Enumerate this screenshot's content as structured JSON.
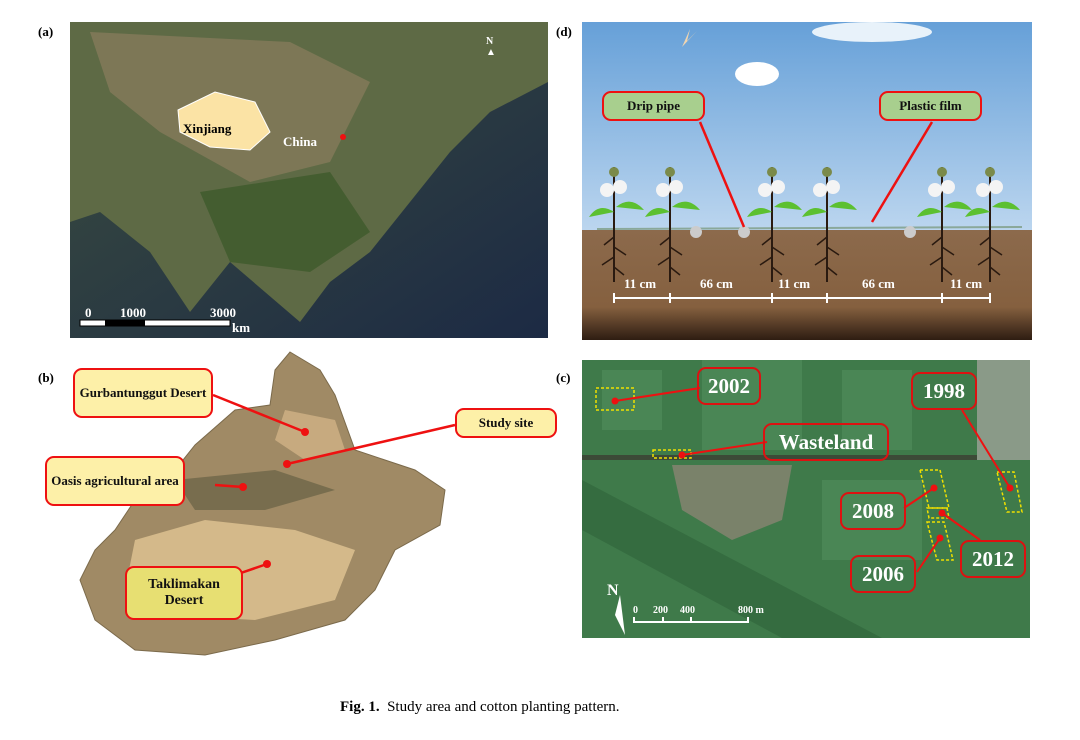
{
  "panels": {
    "a": {
      "label": "(a)",
      "north": "N",
      "region_label": "Xinjiang",
      "country_label": "China",
      "scale_ticks": [
        "0",
        "1000",
        "3000"
      ],
      "scale_unit": "km"
    },
    "b": {
      "label": "(b)",
      "callouts": [
        "Gurbantunggut Desert",
        "Study site",
        "Oasis agricultural area",
        "Taklimakan Desert"
      ]
    },
    "d": {
      "label": "(d)",
      "callouts": [
        "Drip pipe",
        "Plastic film"
      ],
      "spacings": [
        "11 cm",
        "66 cm",
        "11 cm",
        "66 cm",
        "11 cm"
      ]
    },
    "c": {
      "label": "(c)",
      "callouts": [
        "2002",
        "1998",
        "Wasteland",
        "2008",
        "2012",
        "2006"
      ],
      "north": "N",
      "scale_ticks": [
        "0",
        "200",
        "400",
        "800 m"
      ]
    }
  },
  "caption": {
    "prefix": "Fig. 1.",
    "text": "Study area and cotton planting pattern."
  },
  "colors": {
    "callout_border": "#e11111",
    "marker": "#e11111",
    "plot_outline": "#f0e000"
  }
}
